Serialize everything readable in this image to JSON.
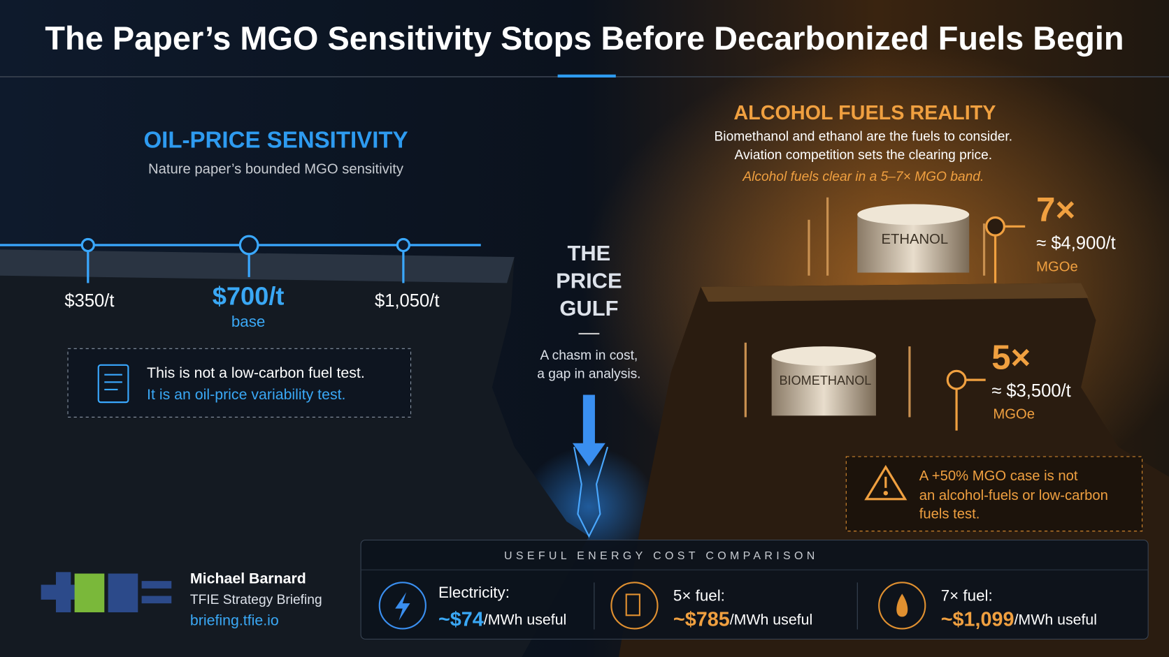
{
  "header": {
    "title": "The Paper’s MGO Sensitivity Stops Before Decarbonized Fuels Begin"
  },
  "left": {
    "heading": "OIL-PRICE SENSITIVITY",
    "subtitle": "Nature paper’s bounded MGO sensitivity",
    "points": [
      {
        "label": "$350/t"
      },
      {
        "label": "$700/t",
        "note": "base"
      },
      {
        "label": "$1,050/t"
      }
    ],
    "note": [
      "This is not a low-carbon fuel test.",
      "It is an oil-price variability test."
    ]
  },
  "center": {
    "heading": [
      "THE",
      "PRICE",
      "GULF"
    ],
    "caption": [
      "A chasm in cost,",
      "a gap in analysis."
    ]
  },
  "right": {
    "heading": "ALCOHOL FUELS REALITY",
    "lines": [
      "Biomethanol and ethanol are the fuels to consider.",
      "Aviation competition sets the clearing price."
    ],
    "highlight": "Alcohol fuels clear in a 5–7× MGO band.",
    "tanks": [
      "ETHANOL",
      "BIOMETHANOL"
    ],
    "markers": [
      {
        "multiple": "7×",
        "price": "≈ $4,900/t",
        "unit": "MGOe"
      },
      {
        "multiple": "5×",
        "price": "≈ $3,500/t",
        "unit": "MGOe"
      }
    ],
    "warning": [
      "A +50% MGO case is not",
      "an alcohol-fuels or low-carbon",
      "fuels test."
    ]
  },
  "comparison": {
    "title": "USEFUL ENERGY COST COMPARISON",
    "items": [
      {
        "label": "Electricity:",
        "value": "~$74",
        "unit": "/MWh useful"
      },
      {
        "label": "5× fuel:",
        "value": "~$785",
        "unit": "/MWh useful"
      },
      {
        "label": "7× fuel:",
        "value": "~$1,099",
        "unit": "/MWh useful"
      }
    ]
  },
  "footer": {
    "author": "Michael Barnard",
    "org": "TFIE Strategy Briefing",
    "url": "briefing.tfie.io"
  }
}
